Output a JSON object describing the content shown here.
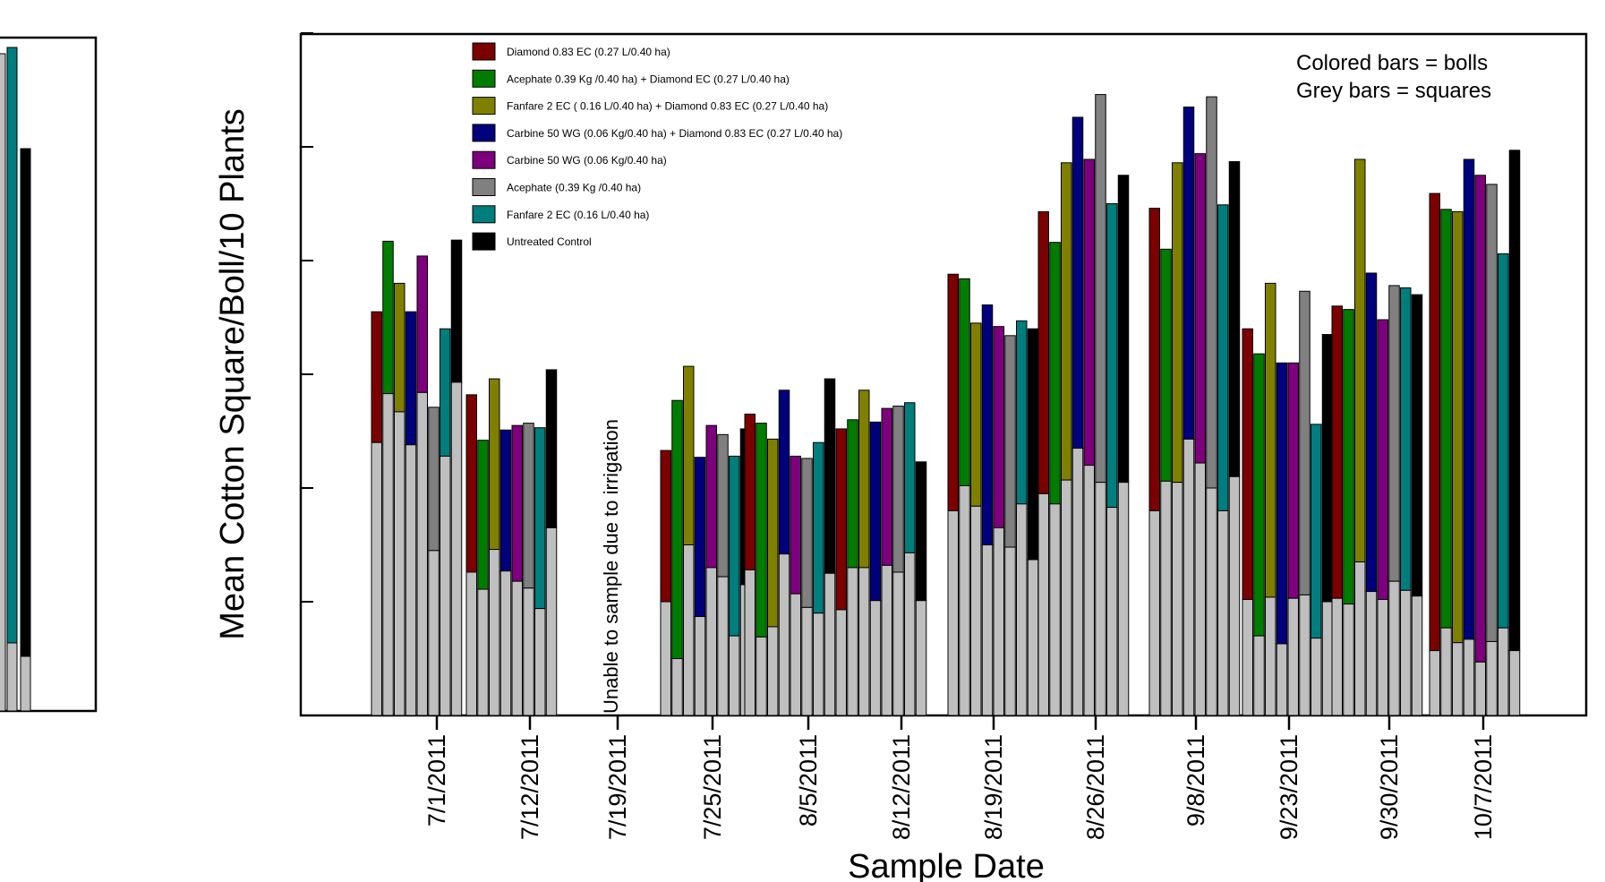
{
  "chart_data": {
    "type": "bar",
    "stacked": true,
    "xlabel": "Sample Date",
    "ylabel": "Mean Cotton Square/Boll/10 Plants",
    "y_tick_labels_visible": false,
    "y_axis_units": "relative (no tick labels printed)",
    "ylim": [
      0,
      6
    ],
    "gap_note": "Unable to sample due to irrigation",
    "annotation_lines": [
      "Colored bars = bolls",
      "Grey bars = squares"
    ],
    "legend_position": "top-left",
    "square_color": "#bfbfbf",
    "series": [
      {
        "name": "Diamond 0.83 EC (0.27 L/0.40 ha)",
        "color": "#7b0000"
      },
      {
        "name": "Acephate 0.39 Kg /0.40 ha)  + Diamond EC (0.27 L/0.40 ha)",
        "color": "#007d00"
      },
      {
        "name": "Fanfare 2 EC ( 0.16 L/0.40 ha) + Diamond 0.83 EC (0.27 L/0.40 ha)",
        "color": "#808000"
      },
      {
        "name": "Carbine 50 WG (0.06 Kg/0.40 ha) + Diamond 0.83 EC (0.27 L/0.40 ha)",
        "color": "#00007d"
      },
      {
        "name": "Carbine 50 WG (0.06 Kg/0.40 ha)",
        "color": "#7d007d"
      },
      {
        "name": "Acephate  (0.39 Kg /0.40 ha)",
        "color": "#808080"
      },
      {
        "name": "Fanfare 2 EC (0.16 L/0.40 ha)",
        "color": "#007d7d"
      },
      {
        "name": "Untreated Control",
        "color": "#000000"
      }
    ],
    "groups": [
      {
        "date": "7/1/2011",
        "squares": [
          2.4,
          2.83,
          2.67,
          2.38,
          2.84,
          1.45,
          2.28,
          2.93
        ],
        "totals": [
          3.55,
          4.17,
          3.8,
          3.55,
          4.04,
          2.71,
          3.4,
          4.18
        ]
      },
      {
        "date": "7/12/2011",
        "squares": [
          1.26,
          1.11,
          1.46,
          1.27,
          1.18,
          1.12,
          0.94,
          1.65
        ],
        "totals": [
          2.82,
          2.42,
          2.96,
          2.51,
          2.55,
          2.57,
          2.53,
          3.04
        ]
      },
      {
        "date": "7/19/2011",
        "squares": [],
        "totals": []
      },
      {
        "date": "7/25/2011",
        "squares": [
          1.0,
          0.5,
          1.5,
          0.87,
          1.3,
          1.22,
          0.7,
          1.15
        ],
        "totals": [
          2.33,
          2.77,
          3.07,
          2.27,
          2.55,
          2.47,
          2.28,
          2.52
        ]
      },
      {
        "date": "8/5/2011",
        "squares": [
          1.28,
          0.69,
          0.78,
          1.42,
          1.07,
          0.95,
          0.9,
          1.25
        ],
        "totals": [
          2.65,
          2.57,
          2.43,
          2.86,
          2.28,
          2.26,
          2.4,
          2.96
        ]
      },
      {
        "date": "8/12/2011",
        "squares": [
          0.93,
          1.3,
          1.3,
          1.01,
          1.32,
          1.26,
          1.43,
          1.01
        ],
        "totals": [
          2.52,
          2.6,
          2.86,
          2.58,
          2.7,
          2.72,
          2.75,
          2.23
        ]
      },
      {
        "date": "8/19/2011",
        "squares": [
          1.8,
          2.02,
          1.84,
          1.5,
          1.65,
          1.48,
          1.86,
          1.37
        ],
        "totals": [
          3.88,
          3.84,
          3.45,
          3.61,
          3.42,
          3.34,
          3.47,
          3.4
        ]
      },
      {
        "date": "8/26/2011",
        "squares": [
          1.95,
          1.86,
          2.07,
          2.35,
          2.2,
          2.05,
          1.83,
          2.05
        ],
        "totals": [
          4.43,
          4.16,
          4.86,
          5.26,
          4.89,
          5.46,
          4.5,
          4.75
        ]
      },
      {
        "date": "9/8/2011",
        "squares": [
          1.8,
          2.06,
          2.05,
          2.43,
          2.22,
          2.0,
          1.8,
          2.1
        ],
        "totals": [
          4.46,
          4.1,
          4.86,
          5.35,
          4.94,
          5.44,
          4.49,
          4.87
        ]
      },
      {
        "date": "9/23/2011",
        "squares": [
          1.02,
          0.7,
          1.04,
          0.63,
          1.03,
          1.06,
          0.68,
          1.0
        ],
        "totals": [
          3.4,
          3.18,
          3.8,
          3.1,
          3.1,
          3.73,
          2.56,
          3.35
        ]
      },
      {
        "date": "9/30/2011",
        "squares": [
          1.03,
          0.98,
          1.35,
          1.09,
          1.02,
          1.18,
          1.1,
          1.05
        ],
        "totals": [
          3.6,
          3.57,
          4.89,
          3.89,
          3.48,
          3.78,
          3.76,
          3.7
        ]
      },
      {
        "date": "10/7/2011",
        "squares": [
          0.57,
          0.77,
          0.64,
          0.67,
          0.47,
          0.65,
          0.77,
          0.57
        ],
        "totals": [
          4.59,
          4.45,
          4.43,
          4.89,
          4.75,
          4.67,
          4.06,
          4.97
        ]
      }
    ]
  }
}
